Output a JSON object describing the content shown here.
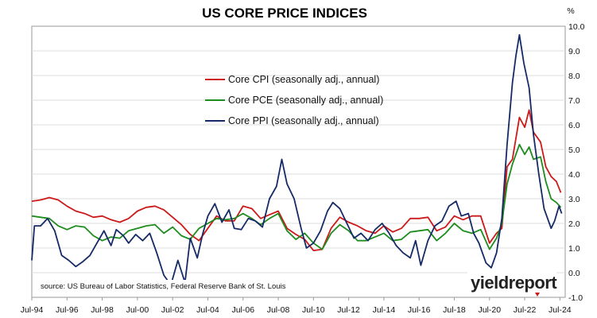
{
  "chart_data": {
    "type": "line",
    "title": "US CORE PRICE INDICES",
    "y_unit": "%",
    "ylim": [
      -1.0,
      10.0
    ],
    "y_ticks": [
      "10.0",
      "9.0",
      "8.0",
      "7.0",
      "6.0",
      "5.0",
      "4.0",
      "3.0",
      "2.0",
      "1.0",
      "0.0",
      "-1.0"
    ],
    "x_ticks": [
      "Jul-94",
      "Jul-96",
      "Jul-98",
      "Jul-00",
      "Jul-02",
      "Jul-04",
      "Jul-06",
      "Jul-08",
      "Jul-10",
      "Jul-12",
      "Jul-14",
      "Jul-16",
      "Jul-18",
      "Jul-20",
      "Jul-22",
      "Jul-24"
    ],
    "xlim": [
      1994.5,
      2024.8
    ],
    "grid": true,
    "legend_position": "upper-center",
    "source": "source: US Bureau of Labor Statistics, Federal Reserve Bank of St. Louis",
    "logo": "yieldreport",
    "series": [
      {
        "name": "Core CPI (seasonally adj., annual)",
        "color": "#cc1a1a",
        "points": [
          [
            1994.5,
            2.9
          ],
          [
            1995.0,
            2.95
          ],
          [
            1995.5,
            3.05
          ],
          [
            1996.0,
            2.95
          ],
          [
            1996.5,
            2.7
          ],
          [
            1997.0,
            2.5
          ],
          [
            1997.5,
            2.4
          ],
          [
            1998.0,
            2.25
          ],
          [
            1998.5,
            2.3
          ],
          [
            1999.0,
            2.15
          ],
          [
            1999.5,
            2.05
          ],
          [
            2000.0,
            2.2
          ],
          [
            2000.5,
            2.5
          ],
          [
            2001.0,
            2.65
          ],
          [
            2001.5,
            2.7
          ],
          [
            2002.0,
            2.55
          ],
          [
            2002.5,
            2.25
          ],
          [
            2003.0,
            1.95
          ],
          [
            2003.5,
            1.55
          ],
          [
            2004.0,
            1.3
          ],
          [
            2004.5,
            1.8
          ],
          [
            2005.0,
            2.3
          ],
          [
            2005.5,
            2.1
          ],
          [
            2006.0,
            2.1
          ],
          [
            2006.5,
            2.7
          ],
          [
            2007.0,
            2.6
          ],
          [
            2007.5,
            2.2
          ],
          [
            2008.0,
            2.35
          ],
          [
            2008.5,
            2.5
          ],
          [
            2009.0,
            1.8
          ],
          [
            2009.5,
            1.55
          ],
          [
            2010.0,
            1.35
          ],
          [
            2010.5,
            0.9
          ],
          [
            2011.0,
            0.95
          ],
          [
            2011.5,
            1.8
          ],
          [
            2012.0,
            2.25
          ],
          [
            2012.5,
            2.05
          ],
          [
            2013.0,
            1.9
          ],
          [
            2013.5,
            1.7
          ],
          [
            2014.0,
            1.6
          ],
          [
            2014.5,
            1.9
          ],
          [
            2015.0,
            1.65
          ],
          [
            2015.5,
            1.8
          ],
          [
            2016.0,
            2.2
          ],
          [
            2016.5,
            2.2
          ],
          [
            2017.0,
            2.25
          ],
          [
            2017.5,
            1.7
          ],
          [
            2018.0,
            1.85
          ],
          [
            2018.5,
            2.3
          ],
          [
            2019.0,
            2.15
          ],
          [
            2019.5,
            2.3
          ],
          [
            2020.0,
            2.3
          ],
          [
            2020.5,
            1.2
          ],
          [
            2020.9,
            1.6
          ],
          [
            2021.2,
            1.8
          ],
          [
            2021.5,
            4.3
          ],
          [
            2021.8,
            4.6
          ],
          [
            2022.2,
            6.3
          ],
          [
            2022.5,
            5.9
          ],
          [
            2022.75,
            6.6
          ],
          [
            2023.0,
            5.7
          ],
          [
            2023.4,
            5.3
          ],
          [
            2023.7,
            4.3
          ],
          [
            2024.0,
            3.9
          ],
          [
            2024.3,
            3.7
          ],
          [
            2024.55,
            3.25
          ]
        ]
      },
      {
        "name": "Core PCE (seasonally adj., annual)",
        "color": "#1e8c1e",
        "points": [
          [
            1994.5,
            2.3
          ],
          [
            1995.0,
            2.25
          ],
          [
            1995.5,
            2.2
          ],
          [
            1996.0,
            1.9
          ],
          [
            1996.5,
            1.75
          ],
          [
            1997.0,
            1.9
          ],
          [
            1997.5,
            1.85
          ],
          [
            1998.0,
            1.5
          ],
          [
            1998.5,
            1.3
          ],
          [
            1999.0,
            1.45
          ],
          [
            1999.5,
            1.4
          ],
          [
            2000.0,
            1.7
          ],
          [
            2000.5,
            1.8
          ],
          [
            2001.0,
            1.9
          ],
          [
            2001.5,
            1.95
          ],
          [
            2002.0,
            1.6
          ],
          [
            2002.5,
            1.85
          ],
          [
            2003.0,
            1.5
          ],
          [
            2003.5,
            1.35
          ],
          [
            2004.0,
            1.8
          ],
          [
            2004.5,
            2.0
          ],
          [
            2005.0,
            2.2
          ],
          [
            2005.5,
            2.15
          ],
          [
            2006.0,
            2.2
          ],
          [
            2006.5,
            2.4
          ],
          [
            2007.0,
            2.2
          ],
          [
            2007.5,
            1.95
          ],
          [
            2008.0,
            2.2
          ],
          [
            2008.5,
            2.4
          ],
          [
            2009.0,
            1.7
          ],
          [
            2009.5,
            1.35
          ],
          [
            2010.0,
            1.6
          ],
          [
            2010.5,
            1.2
          ],
          [
            2011.0,
            0.95
          ],
          [
            2011.5,
            1.6
          ],
          [
            2012.0,
            1.95
          ],
          [
            2012.5,
            1.7
          ],
          [
            2013.0,
            1.3
          ],
          [
            2013.5,
            1.3
          ],
          [
            2014.0,
            1.45
          ],
          [
            2014.5,
            1.6
          ],
          [
            2015.0,
            1.3
          ],
          [
            2015.5,
            1.35
          ],
          [
            2016.0,
            1.65
          ],
          [
            2016.5,
            1.7
          ],
          [
            2017.0,
            1.75
          ],
          [
            2017.5,
            1.3
          ],
          [
            2018.0,
            1.6
          ],
          [
            2018.5,
            2.0
          ],
          [
            2019.0,
            1.7
          ],
          [
            2019.5,
            1.6
          ],
          [
            2020.0,
            1.75
          ],
          [
            2020.5,
            0.95
          ],
          [
            2020.9,
            1.4
          ],
          [
            2021.2,
            2.0
          ],
          [
            2021.5,
            3.6
          ],
          [
            2021.8,
            4.4
          ],
          [
            2022.2,
            5.2
          ],
          [
            2022.5,
            4.8
          ],
          [
            2022.75,
            5.1
          ],
          [
            2023.0,
            4.6
          ],
          [
            2023.4,
            4.7
          ],
          [
            2023.7,
            3.7
          ],
          [
            2024.0,
            3.0
          ],
          [
            2024.3,
            2.85
          ],
          [
            2024.55,
            2.65
          ]
        ]
      },
      {
        "name": "Core PPI (seasonally adj., annual)",
        "color": "#152a66",
        "points": [
          [
            1994.5,
            0.5
          ],
          [
            1994.65,
            1.9
          ],
          [
            1995.0,
            1.9
          ],
          [
            1995.4,
            2.2
          ],
          [
            1995.8,
            1.7
          ],
          [
            1996.2,
            0.7
          ],
          [
            1996.6,
            0.5
          ],
          [
            1997.0,
            0.25
          ],
          [
            1997.4,
            0.45
          ],
          [
            1997.8,
            0.7
          ],
          [
            1998.2,
            1.2
          ],
          [
            1998.6,
            1.7
          ],
          [
            1999.0,
            1.1
          ],
          [
            1999.3,
            1.75
          ],
          [
            1999.7,
            1.5
          ],
          [
            2000.0,
            1.2
          ],
          [
            2000.4,
            1.55
          ],
          [
            2000.8,
            1.3
          ],
          [
            2001.2,
            1.6
          ],
          [
            2001.6,
            0.8
          ],
          [
            2002.0,
            -0.1
          ],
          [
            2002.4,
            -0.5
          ],
          [
            2002.8,
            0.5
          ],
          [
            2003.2,
            -0.4
          ],
          [
            2003.5,
            1.4
          ],
          [
            2003.9,
            0.6
          ],
          [
            2004.2,
            1.55
          ],
          [
            2004.5,
            2.3
          ],
          [
            2004.9,
            2.8
          ],
          [
            2005.3,
            2.05
          ],
          [
            2005.7,
            2.55
          ],
          [
            2006.0,
            1.8
          ],
          [
            2006.4,
            1.75
          ],
          [
            2006.8,
            2.2
          ],
          [
            2007.2,
            2.1
          ],
          [
            2007.6,
            1.85
          ],
          [
            2008.0,
            3.0
          ],
          [
            2008.4,
            3.5
          ],
          [
            2008.7,
            4.6
          ],
          [
            2009.0,
            3.6
          ],
          [
            2009.4,
            3.0
          ],
          [
            2009.8,
            1.8
          ],
          [
            2010.1,
            1.0
          ],
          [
            2010.5,
            1.2
          ],
          [
            2010.9,
            1.7
          ],
          [
            2011.3,
            2.5
          ],
          [
            2011.6,
            2.85
          ],
          [
            2012.0,
            2.6
          ],
          [
            2012.4,
            2.0
          ],
          [
            2012.8,
            1.4
          ],
          [
            2013.2,
            1.6
          ],
          [
            2013.6,
            1.3
          ],
          [
            2014.0,
            1.75
          ],
          [
            2014.4,
            2.0
          ],
          [
            2014.8,
            1.6
          ],
          [
            2015.2,
            1.1
          ],
          [
            2015.6,
            0.8
          ],
          [
            2016.0,
            0.6
          ],
          [
            2016.3,
            1.3
          ],
          [
            2016.6,
            0.3
          ],
          [
            2017.0,
            1.3
          ],
          [
            2017.4,
            1.9
          ],
          [
            2017.8,
            2.1
          ],
          [
            2018.2,
            2.7
          ],
          [
            2018.6,
            2.9
          ],
          [
            2018.9,
            2.3
          ],
          [
            2019.3,
            2.4
          ],
          [
            2019.6,
            1.6
          ],
          [
            2019.9,
            1.2
          ],
          [
            2020.3,
            0.4
          ],
          [
            2020.6,
            0.2
          ],
          [
            2020.9,
            0.8
          ],
          [
            2021.2,
            2.2
          ],
          [
            2021.5,
            5.2
          ],
          [
            2021.8,
            7.7
          ],
          [
            2022.0,
            8.8
          ],
          [
            2022.2,
            9.65
          ],
          [
            2022.45,
            8.5
          ],
          [
            2022.75,
            7.5
          ],
          [
            2023.0,
            5.6
          ],
          [
            2023.3,
            4.0
          ],
          [
            2023.6,
            2.6
          ],
          [
            2024.0,
            1.8
          ],
          [
            2024.2,
            2.1
          ],
          [
            2024.45,
            2.7
          ],
          [
            2024.6,
            2.4
          ]
        ]
      }
    ]
  }
}
